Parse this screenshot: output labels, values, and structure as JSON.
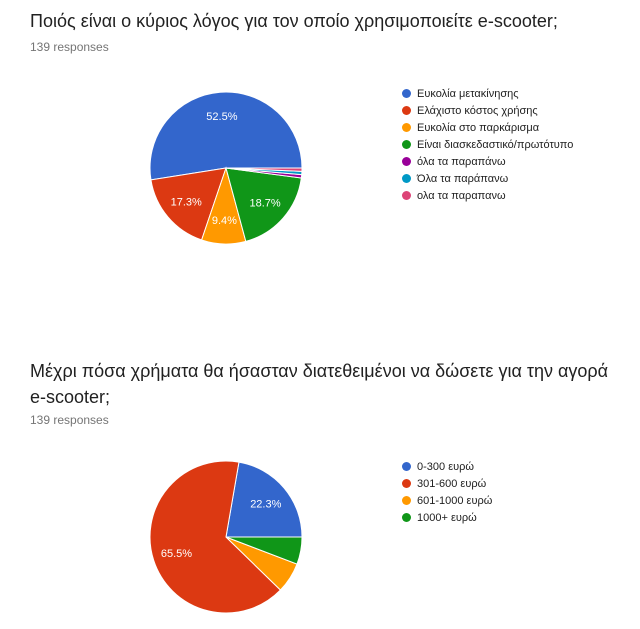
{
  "questions": [
    {
      "title": "Ποιός είναι ο κύριος λόγος για τον οποίο χρησιμοποιείτε e-scooter;",
      "responses": "139 responses"
    },
    {
      "title": "Μέχρι πόσα χρήματα θα ήσασταν διατεθειμένοι να δώσετε για την αγορά e-scooter;",
      "responses": "139 responses"
    }
  ],
  "chart_data": [
    {
      "type": "pie",
      "categories": [
        "Ευκολία μετακίνησης",
        "Ελάχιστο κόστος χρήσης",
        "Ευκολία στο παρκάρισμα",
        "Είναι διασκεδαστικό/πρωτότυπο",
        "όλα τα παραπάνω",
        "Όλα τα παράπανω",
        "ολα τα παραπανω"
      ],
      "values": [
        52.5,
        17.3,
        9.4,
        18.7,
        0.7,
        0.7,
        0.7
      ],
      "labels": [
        "52.5%",
        "17.3%",
        "9.4%",
        "18.7%",
        "",
        "",
        ""
      ],
      "colors": [
        "#3366cc",
        "#dc3912",
        "#ff9900",
        "#109618",
        "#990099",
        "#0099c6",
        "#dd4477"
      ],
      "legend": "right"
    },
    {
      "type": "pie",
      "categories": [
        "0-300 ευρώ",
        "301-600 ευρώ",
        "601-1000 ευρώ",
        "1000+ ευρώ"
      ],
      "values": [
        22.3,
        65.5,
        6.5,
        5.8
      ],
      "labels": [
        "22.3%",
        "65.5%",
        "",
        ""
      ],
      "colors": [
        "#3366cc",
        "#dc3912",
        "#ff9900",
        "#109618"
      ],
      "legend": "right"
    }
  ]
}
